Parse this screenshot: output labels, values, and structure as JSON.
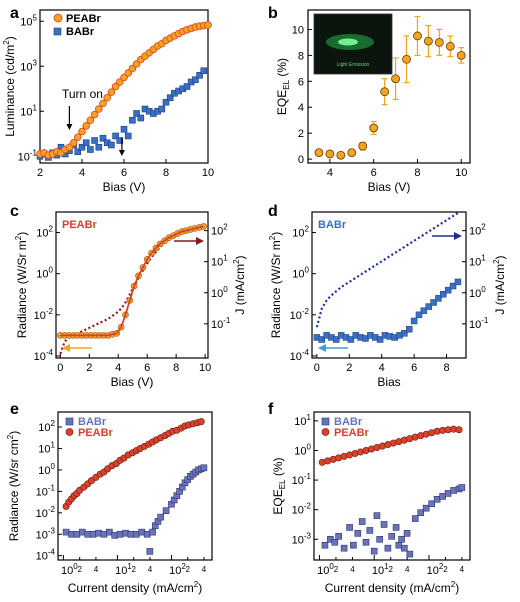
{
  "figure": {
    "panels": [
      "a",
      "b",
      "c",
      "d",
      "e",
      "f"
    ]
  },
  "chart_data": [
    {
      "id": "a",
      "type": "scatter",
      "xlabel": "Bias (V)",
      "ylabel": "Luminance (cd/m",
      "ylabel_sup": "2",
      "ylabel_close": ")",
      "xlim": [
        2,
        10
      ],
      "ylim_log10": [
        -1.3,
        5.5
      ],
      "xticks": [
        2,
        4,
        6,
        8,
        10
      ],
      "yticks_exp": [
        -1,
        1,
        3,
        5
      ],
      "ytick_base": "10",
      "annotation": "Turn on",
      "arrows_x": [
        3.4,
        5.9
      ],
      "colors": {
        "PEABr": "#f2a41f",
        "BABr": "#3a6fc4",
        "PEABr_line": "#d9412b"
      },
      "series": [
        {
          "name": "PEABr",
          "x": [
            2.0,
            2.2,
            2.4,
            2.6,
            2.8,
            3.0,
            3.2,
            3.4,
            3.6,
            3.8,
            4.0,
            4.2,
            4.4,
            4.6,
            4.8,
            5.0,
            5.2,
            5.4,
            5.6,
            5.8,
            6.0,
            6.2,
            6.4,
            6.6,
            6.8,
            7.0,
            7.2,
            7.4,
            7.6,
            7.8,
            8.0,
            8.2,
            8.4,
            8.6,
            8.8,
            9.0,
            9.2,
            9.4,
            9.6,
            9.8,
            10.0
          ],
          "log10y": [
            -0.9,
            -0.85,
            -0.95,
            -0.9,
            -0.8,
            -0.85,
            -0.7,
            -0.6,
            -0.4,
            -0.15,
            0.1,
            0.35,
            0.6,
            0.85,
            1.1,
            1.35,
            1.6,
            1.85,
            2.1,
            2.3,
            2.5,
            2.7,
            2.9,
            3.1,
            3.3,
            3.45,
            3.6,
            3.75,
            3.9,
            4.0,
            4.15,
            4.25,
            4.35,
            4.45,
            4.55,
            4.62,
            4.68,
            4.74,
            4.78,
            4.81,
            4.83
          ]
        },
        {
          "name": "BABr",
          "x": [
            2.0,
            2.2,
            2.4,
            2.6,
            2.8,
            3.0,
            3.2,
            3.4,
            3.6,
            3.8,
            4.0,
            4.2,
            4.4,
            4.6,
            4.8,
            5.0,
            5.2,
            5.4,
            5.6,
            5.8,
            6.0,
            6.2,
            6.4,
            6.6,
            6.8,
            7.0,
            7.2,
            7.4,
            7.6,
            7.8,
            8.0,
            8.2,
            8.4,
            8.6,
            8.8,
            9.0,
            9.2,
            9.4,
            9.6,
            9.8
          ],
          "log10y": [
            -1.0,
            -0.9,
            -1.05,
            -0.85,
            -0.95,
            -0.6,
            -0.9,
            -0.75,
            -0.5,
            -0.8,
            -0.6,
            -0.4,
            -0.7,
            -0.3,
            -0.6,
            -0.2,
            -0.4,
            -0.5,
            -0.1,
            -0.3,
            0.2,
            -0.1,
            0.6,
            0.9,
            0.7,
            1.1,
            1.0,
            0.9,
            1.0,
            1.1,
            1.4,
            1.6,
            1.8,
            1.9,
            2.0,
            2.1,
            2.3,
            2.4,
            2.6,
            2.8
          ]
        }
      ]
    },
    {
      "id": "b",
      "type": "scatter",
      "xlabel": "Bias (V)",
      "ylabel": "EQE",
      "ylabel_sub": "EL",
      "ylabel_unit": "(%)",
      "xlim": [
        3,
        10.4
      ],
      "ylim": [
        -0.3,
        11.5
      ],
      "xticks": [
        4,
        6,
        8,
        10
      ],
      "yticks": [
        0,
        2,
        4,
        6,
        8,
        10
      ],
      "marker_color": "#f2a41f",
      "inset_caption": "Light Emission",
      "x": [
        3.5,
        4.0,
        4.5,
        5.0,
        5.5,
        6.0,
        6.5,
        7.0,
        7.5,
        8.0,
        8.5,
        9.0,
        9.5,
        10.0
      ],
      "y": [
        0.5,
        0.4,
        0.3,
        0.5,
        1.0,
        2.4,
        5.2,
        6.2,
        7.7,
        9.5,
        9.1,
        9.0,
        8.7,
        8.0
      ],
      "err": [
        0.15,
        0.1,
        0.1,
        0.15,
        0.3,
        0.5,
        1.0,
        1.6,
        1.8,
        1.5,
        1.2,
        1.0,
        0.8,
        0.6
      ]
    },
    {
      "id": "c",
      "type": "line",
      "label": "PEABr",
      "xlabel": "Bias (V)",
      "ylabel": "Radiance (W/Sr m",
      "ylabel_sup": "2",
      "ylabel_close": ")",
      "y2label": "J (mA/cm",
      "y2label_sup": "2",
      "y2label_close": ")",
      "xlim": [
        -0.3,
        10.2
      ],
      "xticks": [
        0,
        2,
        4,
        6,
        8,
        10
      ],
      "yticks_exp": [
        -4,
        -2,
        0,
        2
      ],
      "y2ticks_exp": [
        -1,
        0,
        1,
        2
      ],
      "ylim_log10": [
        -4.1,
        3
      ],
      "colors": {
        "radiance": "#d9412b",
        "current": "#8b1a1a",
        "marker": "#f2a41f",
        "left_arrow": "#f2a41f"
      },
      "x": [
        0,
        0.3,
        0.6,
        0.9,
        1.2,
        1.5,
        1.8,
        2.1,
        2.4,
        2.7,
        3.0,
        3.3,
        3.6,
        3.9,
        4.2,
        4.5,
        4.8,
        5.1,
        5.4,
        5.7,
        6.0,
        6.3,
        6.6,
        6.9,
        7.2,
        7.5,
        7.8,
        8.1,
        8.4,
        8.7,
        9.0,
        9.3,
        9.6,
        9.9
      ],
      "log10_radiance": [
        -3.0,
        -3.0,
        -3.0,
        -3.0,
        -3.0,
        -3.0,
        -3.0,
        -3.0,
        -3.0,
        -3.0,
        -3.0,
        -3.0,
        -2.95,
        -2.9,
        -2.6,
        -2.0,
        -1.3,
        -0.6,
        -0.1,
        0.3,
        0.7,
        1.0,
        1.25,
        1.45,
        1.6,
        1.75,
        1.85,
        1.95,
        2.05,
        2.1,
        2.15,
        2.2,
        2.25,
        2.3
      ],
      "log10_current_leftaxis": [
        -3.9,
        -3.3,
        -3.1,
        -3.0,
        -2.9,
        -2.8,
        -2.7,
        -2.6,
        -2.5,
        -2.4,
        -2.3,
        -2.2,
        -2.05,
        -1.9,
        -1.7,
        -1.4,
        -1.0,
        -0.6,
        -0.2,
        0.15,
        0.5,
        0.8,
        1.05,
        1.3,
        1.5,
        1.65,
        1.8,
        1.9,
        2.0,
        2.1,
        2.15,
        2.2,
        2.25,
        2.3
      ]
    },
    {
      "id": "d",
      "type": "line",
      "label": "BABr",
      "xlabel": "Bias",
      "ylabel": "Radiance (W/Sr m",
      "ylabel_sup": "2",
      "ylabel_close": ")",
      "y2label": "J (mA/cm",
      "y2label_sup": "2",
      "y2label_close": ")",
      "xlim": [
        -0.3,
        9.2
      ],
      "xticks": [
        0,
        2,
        4,
        6,
        8
      ],
      "yticks_exp": [
        -4,
        -2,
        0,
        2
      ],
      "y2ticks_exp": [
        -1,
        0,
        1,
        2
      ],
      "ylim_log10": [
        -4.1,
        3
      ],
      "colors": {
        "radiance": "#3a6fc4",
        "current": "#1f2f8f",
        "left_arrow": "#3aa0d9"
      },
      "x": [
        0,
        0.3,
        0.6,
        0.9,
        1.2,
        1.5,
        1.8,
        2.1,
        2.4,
        2.7,
        3.0,
        3.3,
        3.6,
        3.9,
        4.2,
        4.5,
        4.8,
        5.1,
        5.4,
        5.7,
        6.0,
        6.3,
        6.6,
        6.9,
        7.2,
        7.5,
        7.8,
        8.1,
        8.4,
        8.7
      ],
      "log10_radiance": [
        -3.1,
        -3.2,
        -3.0,
        -3.1,
        -3.2,
        -3.0,
        -3.1,
        -3.2,
        -3.0,
        -3.1,
        -3.15,
        -3.0,
        -3.1,
        -3.2,
        -3.0,
        -3.05,
        -3.1,
        -3.0,
        -2.9,
        -2.7,
        -2.3,
        -2.0,
        -1.8,
        -1.6,
        -1.4,
        -1.2,
        -1.0,
        -0.8,
        -0.6,
        -0.4
      ],
      "log10_current_leftaxis": [
        -2.6,
        -1.7,
        -1.3,
        -1.05,
        -0.85,
        -0.65,
        -0.5,
        -0.35,
        -0.2,
        -0.05,
        0.1,
        0.25,
        0.4,
        0.55,
        0.7,
        0.85,
        1.0,
        1.15,
        1.3,
        1.45,
        1.6,
        1.75,
        1.9,
        2.05,
        2.2,
        2.35,
        2.5,
        2.65,
        2.8,
        2.95
      ]
    },
    {
      "id": "e",
      "type": "scatter",
      "xlabel": "Current density (mA/cm",
      "xlabel_sup": "2",
      "xlabel_close": ")",
      "ylabel": "Radiance (W/sr cm",
      "ylabel_sup": "2",
      "ylabel_close": ")",
      "xlim_log10": [
        -0.1,
        2.75
      ],
      "ylim_log10": [
        -4.2,
        2.7
      ],
      "xticks_exp": [
        0,
        1,
        2
      ],
      "yticks_exp": [
        -4,
        -3,
        -2,
        -1,
        0,
        1,
        2
      ],
      "tick_base": "10",
      "minor_labels": [
        "2",
        "4",
        "2",
        "4",
        "2",
        "4"
      ],
      "colors": {
        "BABr": "#6b73b8",
        "PEABr": "#d9412b"
      },
      "series": [
        {
          "name": "BABr",
          "log10x": [
            0.05,
            0.15,
            0.25,
            0.35,
            0.45,
            0.55,
            0.65,
            0.75,
            0.85,
            0.95,
            1.05,
            1.15,
            1.25,
            1.35,
            1.45,
            1.55,
            1.6,
            1.65,
            1.7,
            1.75,
            1.8,
            1.9,
            2.0,
            2.05,
            2.1,
            2.15,
            2.2,
            2.25,
            2.3,
            2.35,
            2.4,
            2.45,
            2.5,
            2.55,
            2.6
          ],
          "log10y": [
            -2.9,
            -3.0,
            -3.0,
            -2.9,
            -3.0,
            -3.0,
            -2.95,
            -3.0,
            -2.9,
            -3.05,
            -3.0,
            -2.95,
            -3.0,
            -3.0,
            -2.9,
            -3.0,
            -3.8,
            -2.9,
            -2.6,
            -2.4,
            -2.2,
            -1.9,
            -1.6,
            -1.4,
            -1.2,
            -1.0,
            -0.8,
            -0.6,
            -0.45,
            -0.3,
            -0.2,
            -0.1,
            0.0,
            0.05,
            0.1
          ]
        },
        {
          "name": "PEABr",
          "log10x": [
            0.05,
            0.1,
            0.15,
            0.2,
            0.25,
            0.3,
            0.38,
            0.45,
            0.52,
            0.6,
            0.68,
            0.75,
            0.82,
            0.9,
            0.98,
            1.05,
            1.12,
            1.2,
            1.28,
            1.35,
            1.42,
            1.5,
            1.58,
            1.65,
            1.72,
            1.8,
            1.88,
            1.95,
            2.02,
            2.1,
            2.18,
            2.25,
            2.32,
            2.4,
            2.48,
            2.55
          ],
          "log10y": [
            -1.7,
            -1.5,
            -1.35,
            -1.2,
            -1.1,
            -0.95,
            -0.8,
            -0.65,
            -0.5,
            -0.35,
            -0.2,
            -0.1,
            0.05,
            0.2,
            0.3,
            0.45,
            0.55,
            0.7,
            0.8,
            0.9,
            1.0,
            1.1,
            1.2,
            1.3,
            1.4,
            1.5,
            1.6,
            1.7,
            1.8,
            1.85,
            1.95,
            2.05,
            2.1,
            2.15,
            2.2,
            2.25
          ]
        }
      ]
    },
    {
      "id": "f",
      "type": "scatter",
      "xlabel": "Current density (mA/cm",
      "xlabel_sup": "2",
      "xlabel_close": ")",
      "ylabel": "EQE",
      "ylabel_sub": "EL",
      "ylabel_unit": "(%)",
      "xlim_log10": [
        -0.1,
        2.75
      ],
      "ylim_log10": [
        -3.7,
        1.3
      ],
      "xticks_exp": [
        0,
        1,
        2
      ],
      "yticks_exp": [
        -3,
        -2,
        -1,
        0,
        1
      ],
      "tick_base": "10",
      "minor_labels": [
        "2",
        "4",
        "2",
        "4",
        "2",
        "4"
      ],
      "colors": {
        "BABr": "#6b73b8",
        "PEABr": "#d9412b"
      },
      "series": [
        {
          "name": "BABr",
          "log10x": [
            0.1,
            0.2,
            0.28,
            0.35,
            0.45,
            0.55,
            0.62,
            0.7,
            0.78,
            0.85,
            0.92,
            1.0,
            1.05,
            1.1,
            1.18,
            1.25,
            1.32,
            1.4,
            1.45,
            1.5,
            1.55,
            1.6,
            1.65,
            1.75,
            1.85,
            1.95,
            2.05,
            2.15,
            2.25,
            2.35,
            2.45,
            2.55,
            2.6
          ],
          "log10y": [
            -3.2,
            -3.0,
            -3.1,
            -2.9,
            -3.3,
            -2.6,
            -3.2,
            -2.8,
            -2.4,
            -3.1,
            -2.7,
            -3.4,
            -2.2,
            -3.0,
            -2.5,
            -3.3,
            -2.9,
            -2.6,
            -3.2,
            -3.0,
            -3.3,
            -2.8,
            -3.5,
            -2.3,
            -2.1,
            -1.95,
            -1.8,
            -1.65,
            -1.55,
            -1.45,
            -1.35,
            -1.3,
            -1.25
          ]
        },
        {
          "name": "PEABr",
          "log10x": [
            0.05,
            0.15,
            0.25,
            0.35,
            0.45,
            0.55,
            0.65,
            0.75,
            0.85,
            0.95,
            1.05,
            1.15,
            1.25,
            1.35,
            1.45,
            1.55,
            1.65,
            1.75,
            1.85,
            1.95,
            2.05,
            2.15,
            2.25,
            2.35,
            2.45,
            2.55
          ],
          "log10y": [
            -0.4,
            -0.35,
            -0.3,
            -0.25,
            -0.2,
            -0.15,
            -0.1,
            -0.05,
            0.0,
            0.05,
            0.1,
            0.15,
            0.2,
            0.25,
            0.3,
            0.35,
            0.4,
            0.45,
            0.5,
            0.55,
            0.6,
            0.65,
            0.68,
            0.7,
            0.72,
            0.7
          ]
        }
      ]
    }
  ]
}
